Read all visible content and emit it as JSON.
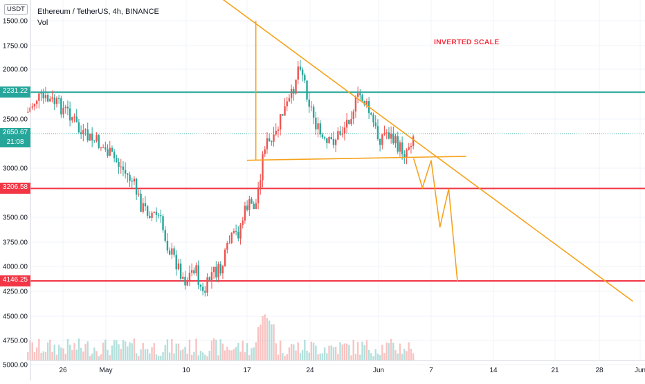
{
  "header": {
    "title": "Ethereum / TetherUS, 4h, BINANCE",
    "vol_label": "Vol",
    "currency_label": "USDT"
  },
  "annotation": "INVERTED SCALE",
  "price_axis": {
    "inverted": true,
    "ticks": [
      "1500.00",
      "1750.00",
      "2000.00",
      "2500.00",
      "3000.00",
      "3500.00",
      "3750.00",
      "4000.00",
      "4250.00",
      "4500.00",
      "4750.00",
      "5000.00"
    ],
    "tick_values": [
      1500,
      1750,
      2000,
      2500,
      3000,
      3500,
      3750,
      4000,
      4250,
      4500,
      4750,
      5000
    ]
  },
  "time_axis": {
    "ticks": [
      "26",
      "May",
      "10",
      "17",
      "24",
      "Jun",
      "7",
      "14",
      "21",
      "28",
      "Jun"
    ]
  },
  "levels": [
    {
      "label": "2231.22",
      "value": 2231.22,
      "color": "#26a69a",
      "kind": "line"
    },
    {
      "label": "2650.67",
      "value": 2650.67,
      "sublabel": "21:08",
      "color": "#26a69a",
      "kind": "current"
    },
    {
      "label": "3206.58",
      "value": 3206.58,
      "color": "#f23645",
      "kind": "line"
    },
    {
      "label": "4146.25",
      "value": 4146.25,
      "color": "#f23645",
      "kind": "line"
    }
  ],
  "colors": {
    "up": "#26a69a",
    "down": "#ef5350",
    "trendline": "#f7a21b",
    "grid": "#f0f3fa",
    "axis_text": "#131722"
  },
  "chart_data": {
    "type": "candlestick",
    "title": "Ethereum / TetherUS, 4h, BINANCE",
    "y_inverted": true,
    "ylim": [
      1500,
      5000
    ],
    "x_range": [
      "Apr 22",
      "Jun 30"
    ],
    "trend_path": [
      {
        "x": "Apr 22",
        "y": 2430
      },
      {
        "x": "Apr 23",
        "y": 2290
      },
      {
        "x": "Apr 25",
        "y": 2330
      },
      {
        "x": "Apr 27",
        "y": 2460
      },
      {
        "x": "Apr 28",
        "y": 2660
      },
      {
        "x": "Apr 30",
        "y": 2740
      },
      {
        "x": "May 2",
        "y": 2920
      },
      {
        "x": "May 4",
        "y": 3150
      },
      {
        "x": "May 5",
        "y": 3400
      },
      {
        "x": "May 7",
        "y": 3500
      },
      {
        "x": "May 8",
        "y": 3800
      },
      {
        "x": "May 10",
        "y": 4150
      },
      {
        "x": "May 11",
        "y": 4000
      },
      {
        "x": "May 12",
        "y": 4300
      },
      {
        "x": "May 13",
        "y": 4060
      },
      {
        "x": "May 14",
        "y": 4050
      },
      {
        "x": "May 15",
        "y": 3750
      },
      {
        "x": "May 16",
        "y": 3650
      },
      {
        "x": "May 17",
        "y": 3380
      },
      {
        "x": "May 18",
        "y": 3380
      },
      {
        "x": "May 19",
        "y": 2750
      },
      {
        "x": "May 20",
        "y": 2750
      },
      {
        "x": "May 21",
        "y": 2450
      },
      {
        "x": "May 22",
        "y": 2300
      },
      {
        "x": "May 23",
        "y": 1900
      },
      {
        "x": "May 24",
        "y": 2300
      },
      {
        "x": "May 25",
        "y": 2600
      },
      {
        "x": "May 26",
        "y": 2780
      },
      {
        "x": "May 27",
        "y": 2700
      },
      {
        "x": "May 28",
        "y": 2600
      },
      {
        "x": "May 29",
        "y": 2400
      },
      {
        "x": "May 30",
        "y": 2250
      },
      {
        "x": "May 31",
        "y": 2450
      },
      {
        "x": "Jun 1",
        "y": 2700
      },
      {
        "x": "Jun 2",
        "y": 2630
      },
      {
        "x": "Jun 3",
        "y": 2760
      },
      {
        "x": "Jun 4",
        "y": 2840
      },
      {
        "x": "Jun 5",
        "y": 2650
      }
    ],
    "projection": [
      {
        "x": "Jun 5",
        "y": 2900
      },
      {
        "x": "Jun 6",
        "y": 3200
      },
      {
        "x": "Jun 7",
        "y": 2920
      },
      {
        "x": "Jun 8",
        "y": 3600
      },
      {
        "x": "Jun 9",
        "y": 3210
      },
      {
        "x": "Jun 10",
        "y": 4150
      }
    ],
    "trendlines": [
      {
        "name": "descending",
        "from": {
          "x": "May 14",
          "y": 1270
        },
        "to": {
          "x": "Jun 30",
          "y": 4350
        }
      },
      {
        "name": "neckline",
        "from": {
          "x": "May 17",
          "y": 2920
        },
        "to": {
          "x": "Jun 11",
          "y": 2880
        }
      },
      {
        "name": "vertical",
        "from": {
          "x": "May 18",
          "y": 1500
        },
        "to": {
          "x": "May 18",
          "y": 2920
        }
      }
    ]
  }
}
